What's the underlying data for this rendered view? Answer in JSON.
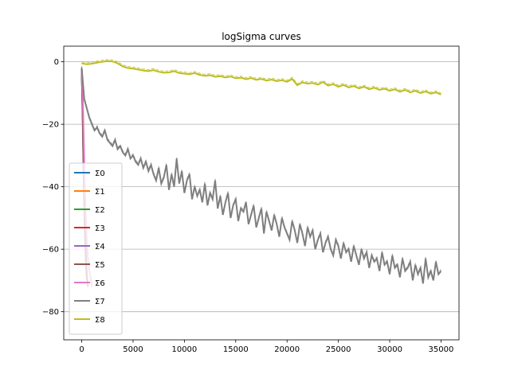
{
  "chart_data": {
    "type": "line",
    "title": "logSigma curves",
    "xlabel": "",
    "ylabel": "",
    "xlim": [
      -1750,
      36750
    ],
    "ylim": [
      -89,
      5
    ],
    "xticks": [
      0,
      5000,
      10000,
      15000,
      20000,
      25000,
      30000,
      35000
    ],
    "xtick_labels": [
      "0",
      "5000",
      "10000",
      "15000",
      "20000",
      "25000",
      "30000",
      "35000"
    ],
    "yticks": [
      0,
      -20,
      -40,
      -60,
      -80
    ],
    "ytick_labels": [
      "0",
      "−20",
      "−40",
      "−60",
      "−80"
    ],
    "grid": "horizontal",
    "legend": {
      "placement": "lower-left"
    },
    "series": [
      {
        "name": "Σ0",
        "color": "#1f77b4",
        "x": [
          0,
          100,
          200,
          300,
          400
        ],
        "y": [
          -2,
          -15,
          -30,
          -45,
          -55
        ]
      },
      {
        "name": "Σ1",
        "color": "#ff7f0e",
        "x": [
          0,
          100,
          200,
          300,
          400
        ],
        "y": [
          -2,
          -16,
          -32,
          -48,
          -58
        ]
      },
      {
        "name": "Σ2",
        "color": "#2ca02c",
        "x": [
          0,
          100,
          200,
          300,
          400
        ],
        "y": [
          -2,
          -17,
          -34,
          -50,
          -60
        ]
      },
      {
        "name": "Σ3",
        "color": "#d62728",
        "x": [
          0,
          100,
          200,
          300,
          400
        ],
        "y": [
          -3,
          -15,
          -35,
          -50,
          -62
        ]
      },
      {
        "name": "Σ4",
        "color": "#9467bd",
        "x": [
          0,
          100,
          200,
          300,
          400,
          500
        ],
        "y": [
          -3,
          -20,
          -40,
          -55,
          -65,
          -70
        ]
      },
      {
        "name": "Σ5",
        "color": "#8c564b",
        "x": [
          0,
          100,
          200,
          300,
          400,
          500,
          600
        ],
        "y": [
          -2,
          -18,
          -38,
          -52,
          -62,
          -68,
          -72
        ]
      },
      {
        "name": "Σ6",
        "color": "#e377c2",
        "x": [
          0,
          100,
          200,
          300,
          400,
          500,
          600,
          700,
          800,
          900,
          1000
        ],
        "y": [
          -3,
          -10,
          -25,
          -40,
          -50,
          -58,
          -63,
          -66,
          -68,
          -70,
          -72
        ]
      },
      {
        "name": "Σ7",
        "color": "#7f7f7f",
        "x": [
          0,
          250,
          500,
          750,
          1000,
          1250,
          1500,
          1750,
          2000,
          2250,
          2500,
          2750,
          3000,
          3250,
          3500,
          3750,
          4000,
          4250,
          4500,
          4750,
          5000,
          5250,
          5500,
          5750,
          6000,
          6250,
          6500,
          6750,
          7000,
          7250,
          7500,
          7750,
          8000,
          8250,
          8500,
          8750,
          9000,
          9250,
          9500,
          9750,
          10000,
          10250,
          10500,
          10750,
          11000,
          11250,
          11500,
          11750,
          12000,
          12250,
          12500,
          12750,
          13000,
          13250,
          13500,
          13750,
          14000,
          14250,
          14500,
          14750,
          15000,
          15250,
          15500,
          15750,
          16000,
          16250,
          16500,
          16750,
          17000,
          17250,
          17500,
          17750,
          18000,
          18250,
          18500,
          18750,
          19000,
          19250,
          19500,
          19750,
          20000,
          20250,
          20500,
          20750,
          21000,
          21250,
          21500,
          21750,
          22000,
          22250,
          22500,
          22750,
          23000,
          23250,
          23500,
          23750,
          24000,
          24250,
          24500,
          24750,
          25000,
          25250,
          25500,
          25750,
          26000,
          26250,
          26500,
          26750,
          27000,
          27250,
          27500,
          27750,
          28000,
          28250,
          28500,
          28750,
          29000,
          29250,
          29500,
          29750,
          30000,
          30250,
          30500,
          30750,
          31000,
          31250,
          31500,
          31750,
          32000,
          32250,
          32500,
          32750,
          33000,
          33250,
          33500,
          33750,
          34000,
          34250,
          34500,
          34750,
          35000
        ],
        "y": [
          -2,
          -12,
          -15,
          -18,
          -20,
          -22,
          -21,
          -23,
          -24,
          -22,
          -25,
          -26,
          -27,
          -25,
          -28,
          -27,
          -29,
          -30,
          -28,
          -31,
          -30,
          -32,
          -33,
          -31,
          -34,
          -32,
          -35,
          -33,
          -36,
          -38,
          -34,
          -39,
          -37,
          -33,
          -41,
          -36,
          -40,
          -31,
          -39,
          -35,
          -42,
          -38,
          -36,
          -44,
          -40,
          -43,
          -41,
          -45,
          -39,
          -46,
          -42,
          -44,
          -38,
          -47,
          -43,
          -49,
          -45,
          -42,
          -50,
          -46,
          -44,
          -51,
          -47,
          -48,
          -45,
          -52,
          -49,
          -46,
          -53,
          -50,
          -47,
          -55,
          -48,
          -51,
          -54,
          -49,
          -52,
          -56,
          -50,
          -53,
          -55,
          -57,
          -51,
          -54,
          -58,
          -52,
          -55,
          -59,
          -53,
          -56,
          -54,
          -60,
          -57,
          -55,
          -61,
          -58,
          -56,
          -60,
          -62,
          -57,
          -59,
          -63,
          -58,
          -61,
          -60,
          -64,
          -59,
          -62,
          -65,
          -60,
          -63,
          -61,
          -66,
          -62,
          -64,
          -63,
          -67,
          -61,
          -65,
          -64,
          -68,
          -62,
          -66,
          -65,
          -69,
          -63,
          -67,
          -66,
          -64,
          -70,
          -65,
          -68,
          -66,
          -71,
          -63,
          -69,
          -67,
          -70,
          -64,
          -68,
          -67
        ]
      },
      {
        "name": "Σ8",
        "color": "#bcbd22",
        "x": [
          0,
          500,
          1000,
          1500,
          2000,
          2500,
          3000,
          3500,
          4000,
          4500,
          5000,
          5500,
          6000,
          6500,
          7000,
          7500,
          8000,
          8500,
          9000,
          9500,
          10000,
          10500,
          11000,
          11500,
          12000,
          12500,
          13000,
          13500,
          14000,
          14500,
          15000,
          15500,
          16000,
          16500,
          17000,
          17500,
          18000,
          18500,
          19000,
          19500,
          20000,
          20500,
          21000,
          21500,
          22000,
          22500,
          23000,
          23500,
          24000,
          24500,
          25000,
          25500,
          26000,
          26500,
          27000,
          27500,
          28000,
          28500,
          29000,
          29500,
          30000,
          30500,
          31000,
          31500,
          32000,
          32500,
          33000,
          33500,
          34000,
          34500,
          35000
        ],
        "y": [
          -0.5,
          -0.8,
          -0.6,
          -0.3,
          0,
          0.2,
          0.1,
          -0.5,
          -1.5,
          -2,
          -2.2,
          -2.5,
          -2.8,
          -3,
          -2.7,
          -3.2,
          -3.5,
          -3.4,
          -3,
          -3.6,
          -3.8,
          -4,
          -3.6,
          -4.2,
          -4.5,
          -4.3,
          -4.8,
          -4.6,
          -5,
          -4.7,
          -5.3,
          -5.1,
          -5.6,
          -5.2,
          -5.8,
          -5.5,
          -6,
          -5.7,
          -6.2,
          -5.9,
          -6.4,
          -5.5,
          -7.5,
          -6.6,
          -7,
          -6.8,
          -7.3,
          -6.5,
          -7.6,
          -7.2,
          -8,
          -7.4,
          -8.2,
          -7.8,
          -8.5,
          -8,
          -8.8,
          -8.3,
          -9,
          -8.6,
          -9.3,
          -8.8,
          -9.6,
          -9,
          -9.8,
          -9.3,
          -10,
          -9.5,
          -10.2,
          -9.8,
          -10.5
        ]
      }
    ]
  }
}
